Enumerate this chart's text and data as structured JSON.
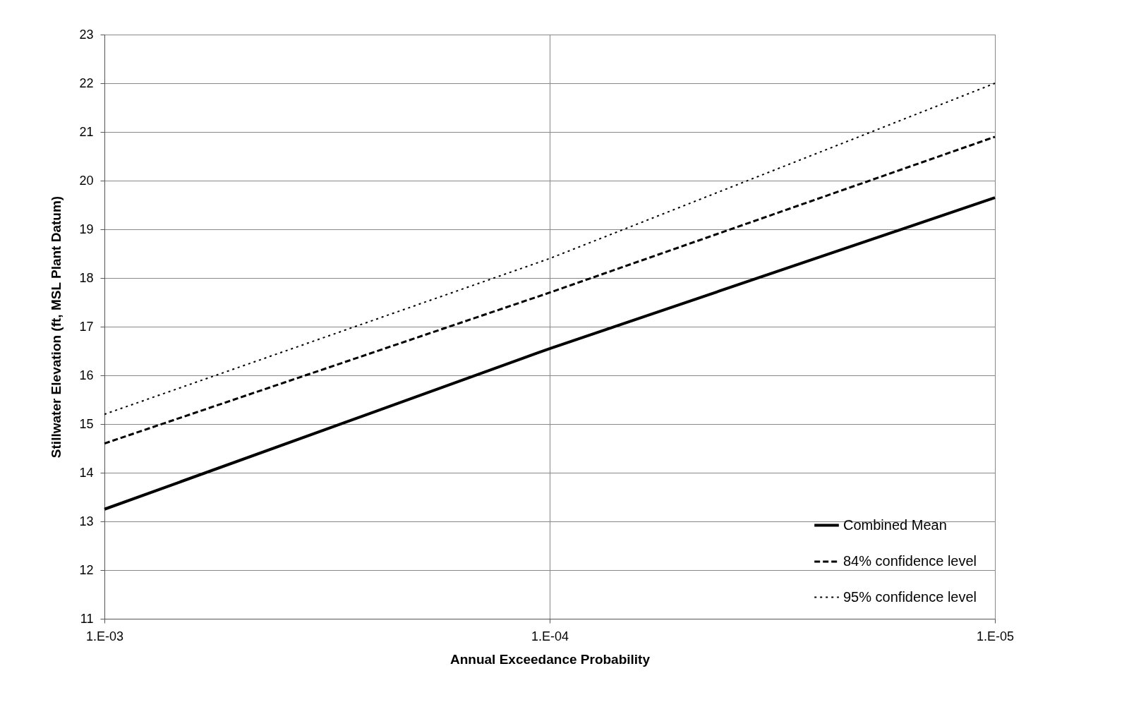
{
  "chart_data": {
    "type": "line",
    "xlabel": "Annual Exceedance Probability",
    "ylabel": "Stillwater Elevation (ft, MSL Plant Datum)",
    "categories": [
      "1.E-03",
      "1.E-04",
      "1.E-05"
    ],
    "ylim": [
      11,
      23
    ],
    "yticks": [
      11,
      12,
      13,
      14,
      15,
      16,
      17,
      18,
      19,
      20,
      21,
      22,
      23
    ],
    "grid": true,
    "legend": "bottom right",
    "series": [
      {
        "name": "Combined Mean",
        "color": "#000000",
        "line_style": "solid",
        "values": [
          13.25,
          16.55,
          19.65
        ]
      },
      {
        "name": "84%  confidence level",
        "color": "#000000",
        "line_style": "dashed",
        "values": [
          14.6,
          17.7,
          20.9
        ]
      },
      {
        "name": "95%  confidence level",
        "color": "#000000",
        "line_style": "dotted",
        "values": [
          15.2,
          18.4,
          22.0
        ]
      }
    ]
  }
}
